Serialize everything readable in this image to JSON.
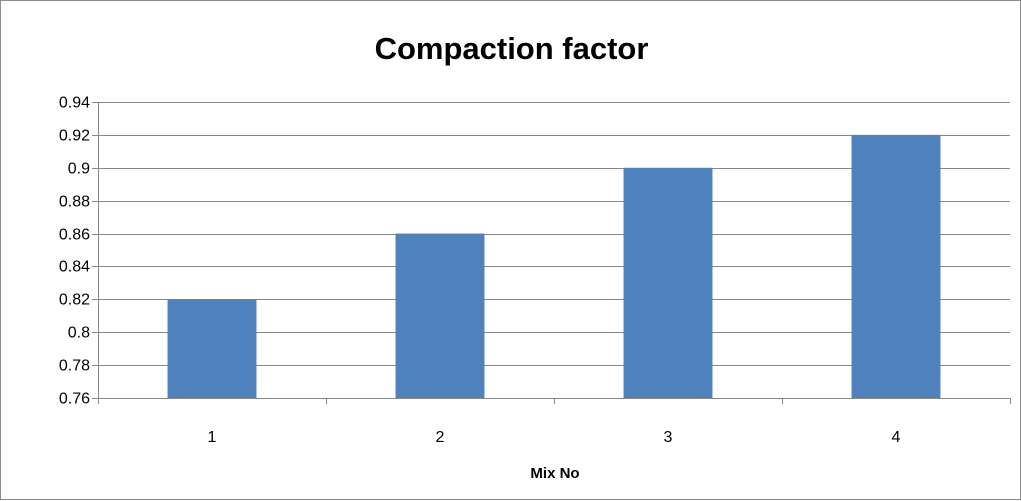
{
  "chart_data": {
    "type": "bar",
    "title": "Compaction factor",
    "xlabel": "Mix No",
    "ylabel": "",
    "categories": [
      "1",
      "2",
      "3",
      "4"
    ],
    "values": [
      0.82,
      0.86,
      0.9,
      0.92
    ],
    "ylim": [
      0.76,
      0.94
    ],
    "yticks": [
      "0.76",
      "0.78",
      "0.8",
      "0.82",
      "0.84",
      "0.86",
      "0.88",
      "0.9",
      "0.92",
      "0.94"
    ],
    "grid": true,
    "legend": "none",
    "bar_color": "#4f81bd",
    "grid_color": "#888888"
  }
}
